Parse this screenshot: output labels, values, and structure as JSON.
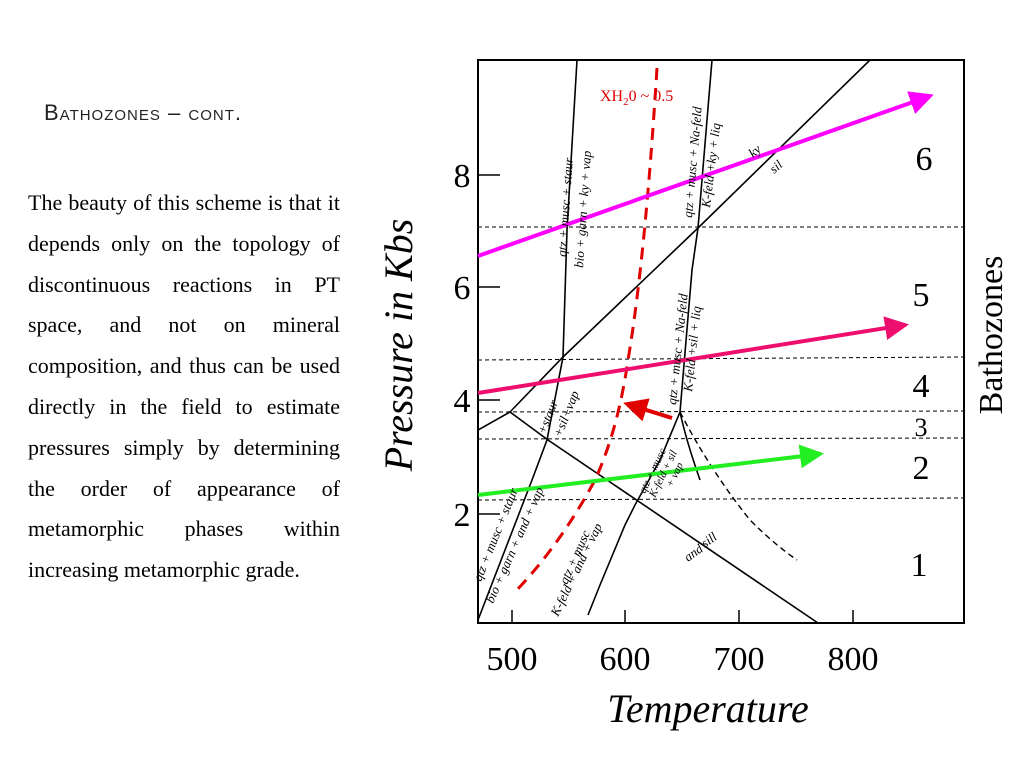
{
  "slide": {
    "title": "Bathozones – cont.",
    "body": "The beauty of this scheme is that it depends only on the topology of discontinuous reactions in PT space, and not on mineral composition, and thus can be used directly in the field to estimate pressures simply by determining the order of appearance of metamorphic phases within increasing metamorphic grade."
  },
  "diagram": {
    "axes": {
      "xlabel": "Temperature",
      "ylabel": "Pressure in Kbs",
      "x_ticks": [
        "500",
        "600",
        "700",
        "800"
      ],
      "y_ticks": [
        "2",
        "4",
        "6",
        "8"
      ]
    },
    "side_label": "Bathozones",
    "zones": [
      "1",
      "2",
      "3",
      "4",
      "5",
      "6"
    ],
    "water_label": {
      "main": "XH",
      "sub": "2",
      "rest": "0 ~ 0.5",
      "color": "#e00000"
    },
    "reaction_labels": {
      "r1_top": "qtz + musc + staur",
      "r1_bottom": "bio + garn + ky + vap",
      "r2_top": "qtz + musc + Na-feld",
      "r2_bottom": "K-feld +ky + liq",
      "ky": "ky",
      "sil": "sil",
      "r3_top": "qtz + musc + Na-feld",
      "r3_bottom": "K-feld +sil + liq",
      "staur_sil": "+staur",
      "sil_vap": "+sil+vap",
      "r4_top": "qtz + musc + staur",
      "r4_bottom": "bio + garn + and + vap",
      "r5_top": "qtz + musc",
      "r5_bottom": "K-feld + and + vap",
      "r6_line1": "qtz + musc",
      "r6_line2": "K-feld + sil",
      "r6_line3": "+ vap",
      "sill": "sill",
      "and": "and"
    },
    "arrow_colors": {
      "magenta": "#ff00ff",
      "pink": "#ee0e6e",
      "green": "#22ee22",
      "red": "#e00000"
    }
  }
}
